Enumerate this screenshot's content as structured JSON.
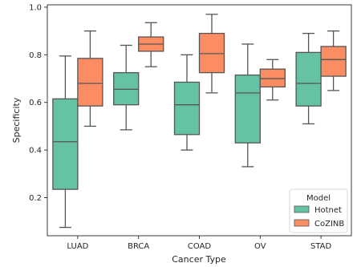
{
  "chart_data": {
    "type": "boxplot",
    "title": "",
    "xlabel": "Cancer Type",
    "ylabel": "Specificity",
    "ylim": [
      0.04,
      1.01
    ],
    "yticks": [
      "0.2",
      "0.4",
      "0.6",
      "0.8",
      "1.0"
    ],
    "ytick_values": [
      0.2,
      0.4,
      0.6,
      0.8,
      1.0
    ],
    "categories": [
      "LUAD",
      "BRCA",
      "COAD",
      "OV",
      "STAD"
    ],
    "grid": false,
    "legend": {
      "title": "Model",
      "placement": "lower-right"
    },
    "series": [
      {
        "name": "Hotnet",
        "color": "#66c2a5",
        "boxes": [
          {
            "whislo": 0.075,
            "q1": 0.235,
            "med": 0.435,
            "q3": 0.615,
            "whishi": 0.795
          },
          {
            "whislo": 0.485,
            "q1": 0.59,
            "med": 0.655,
            "q3": 0.725,
            "whishi": 0.84
          },
          {
            "whislo": 0.4,
            "q1": 0.465,
            "med": 0.59,
            "q3": 0.685,
            "whishi": 0.8
          },
          {
            "whislo": 0.33,
            "q1": 0.43,
            "med": 0.64,
            "q3": 0.715,
            "whishi": 0.845
          },
          {
            "whislo": 0.51,
            "q1": 0.585,
            "med": 0.68,
            "q3": 0.81,
            "whishi": 0.89
          }
        ]
      },
      {
        "name": "CoZINB",
        "color": "#fc8d62",
        "boxes": [
          {
            "whislo": 0.5,
            "q1": 0.585,
            "med": 0.68,
            "q3": 0.785,
            "whishi": 0.9
          },
          {
            "whislo": 0.75,
            "q1": 0.815,
            "med": 0.845,
            "q3": 0.875,
            "whishi": 0.935
          },
          {
            "whislo": 0.64,
            "q1": 0.725,
            "med": 0.805,
            "q3": 0.89,
            "whishi": 0.97
          },
          {
            "whislo": 0.61,
            "q1": 0.665,
            "med": 0.7,
            "q3": 0.74,
            "whishi": 0.78
          },
          {
            "whislo": 0.65,
            "q1": 0.71,
            "med": 0.78,
            "q3": 0.835,
            "whishi": 0.9
          }
        ]
      }
    ]
  }
}
